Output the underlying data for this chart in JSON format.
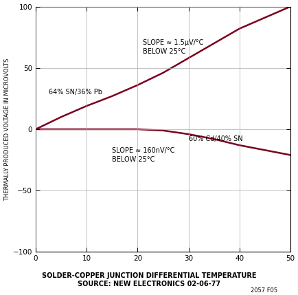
{
  "xlabel_line1": "SOLDER-COPPER JUNCTION DIFFERENTIAL TEMPERATURE",
  "xlabel_line2": "SOURCE: NEW ELECTRONICS 02-06-77",
  "ylabel": "THERMALLY PRODUCED VOLTAGE IN MICROVOLTS",
  "xlim": [
    0,
    50
  ],
  "ylim": [
    -100,
    100
  ],
  "xticks": [
    0,
    10,
    20,
    30,
    40,
    50
  ],
  "yticks": [
    -100,
    -50,
    0,
    50,
    100
  ],
  "line_color": "#7a0020",
  "background_color": "#ffffff",
  "grid_color": "#aaaaaa",
  "curve1_label": "64% SN/36% Pb",
  "curve2_label": "60% Cd/40% SN",
  "annotation1": "SLOPE ≈ 1.5μV/°C\nBELOW 25°C",
  "annotation2": "SLOPE ≈ 160nV/°C\nBELOW 25°C",
  "figure_id": "2057 F05",
  "curve1_x": [
    0,
    5,
    10,
    15,
    20,
    25,
    30,
    35,
    40,
    45,
    50
  ],
  "curve1_y": [
    0,
    10,
    19,
    27,
    36,
    46,
    58,
    70,
    82,
    91,
    100
  ],
  "curve2_x": [
    0,
    5,
    10,
    15,
    20,
    25,
    30,
    35,
    40,
    45,
    50
  ],
  "curve2_y": [
    0,
    0.0,
    0.0,
    0.0,
    0.0,
    -1,
    -4,
    -8,
    -13,
    -17,
    -21
  ]
}
